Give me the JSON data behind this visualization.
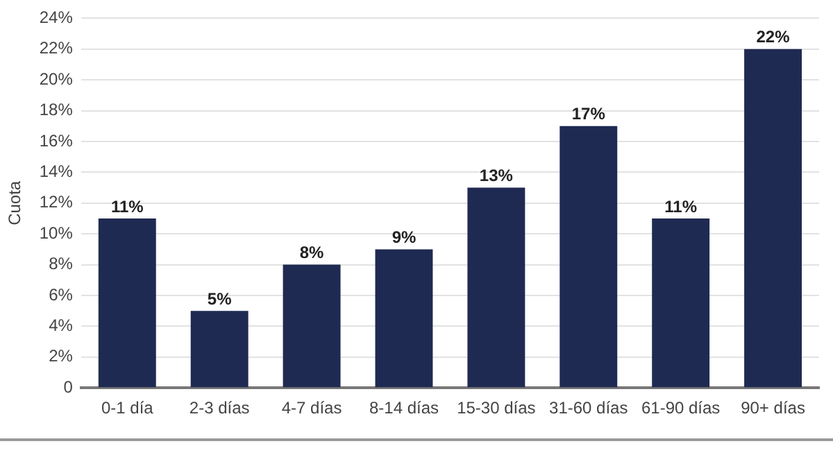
{
  "chart_data": {
    "type": "bar",
    "ylabel": "Cuota",
    "categories": [
      "0-1 día",
      "2-3 días",
      "4-7 días",
      "8-14 días",
      "15-30 días",
      "31-60 días",
      "61-90 días",
      "90+ días"
    ],
    "values": [
      11,
      5,
      8,
      9,
      13,
      17,
      11,
      22
    ],
    "value_labels": [
      "11%",
      "5%",
      "8%",
      "9%",
      "13%",
      "17%",
      "11%",
      "22%"
    ],
    "color": "#1f2a52",
    "ylim": [
      0,
      24
    ],
    "yticks": [
      0,
      {
        "value": 2,
        "label": "2%"
      },
      {
        "value": 4,
        "label": "4%"
      },
      {
        "value": 6,
        "label": "6%"
      },
      {
        "value": 8,
        "label": "8%"
      },
      {
        "value": 10,
        "label": "10%"
      },
      {
        "value": 12,
        "label": "12%"
      },
      {
        "value": 14,
        "label": "14%"
      },
      {
        "value": 16,
        "label": "16%"
      },
      {
        "value": 18,
        "label": "18%"
      },
      {
        "value": 20,
        "label": "20%"
      },
      {
        "value": 22,
        "label": "22%"
      },
      {
        "value": 24,
        "label": "24%"
      }
    ],
    "grid": "y",
    "legend": false
  }
}
